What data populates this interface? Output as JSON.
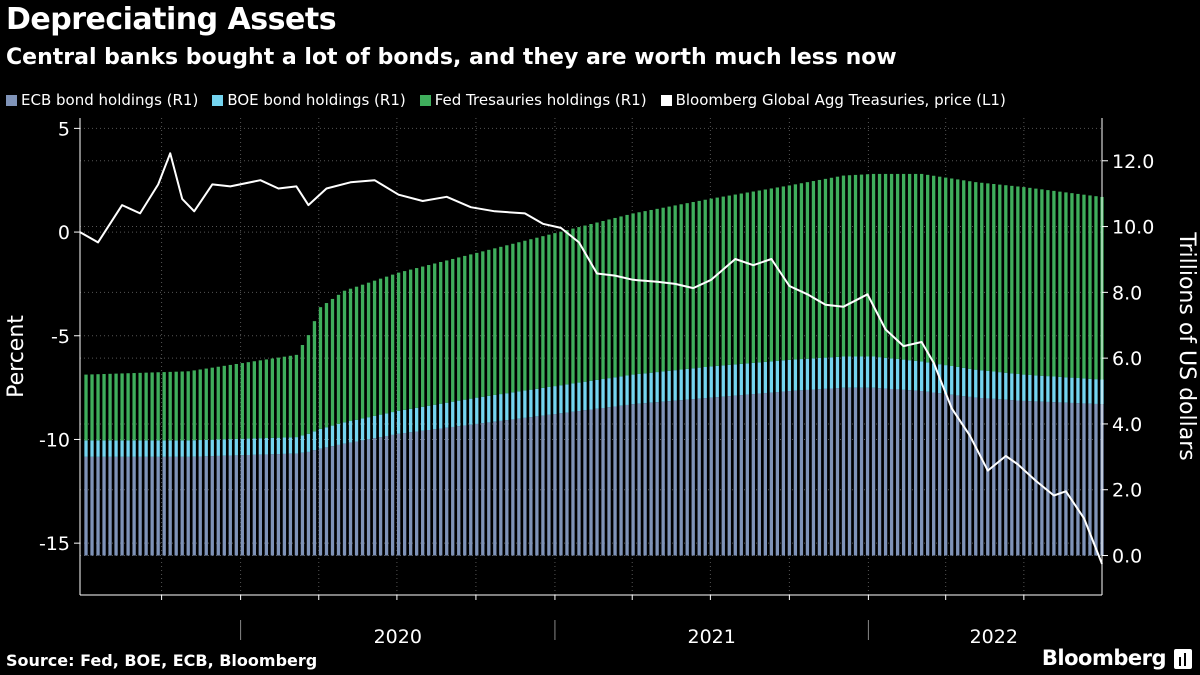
{
  "title": "Depreciating Assets",
  "subtitle": "Central banks bought a lot of bonds, and they are worth much less now",
  "source": "Source: Fed, BOE, ECB, Bloomberg",
  "brand": "Bloomberg",
  "colors": {
    "ecb": "#7f93b8",
    "boe": "#74d4ef",
    "fed": "#3fae5c",
    "line": "#ffffff",
    "grid": "#555555",
    "background": "#000000"
  },
  "legend": [
    {
      "label": "ECB bond holdings (R1)",
      "color": "#7f93b8"
    },
    {
      "label": "BOE bond holdings (R1)",
      "color": "#74d4ef"
    },
    {
      "label": "Fed Tresauries holdings (R1)",
      "color": "#3fae5c"
    },
    {
      "label": "Bloomberg Global Agg Treasuries, price  (L1)",
      "color": "#ffffff"
    }
  ],
  "chart_data": {
    "type": "bar+line",
    "title": "Depreciating Assets",
    "subtitle": "Central banks bought a lot of bonds, and they are worth much less now",
    "x_axis": {
      "type": "date",
      "range": [
        "2019-06-28",
        "2022-09-30"
      ],
      "tick_labels": [
        "2020",
        "2021",
        "2022"
      ]
    },
    "left_axis": {
      "label": "Percent",
      "range": [
        -17.5,
        5.5
      ],
      "ticks": [
        5,
        0,
        -5,
        -10,
        -15
      ]
    },
    "right_axis": {
      "label": "Trillions of US dollars",
      "range": [
        -1.2,
        13.3
      ],
      "ticks": [
        "0.0",
        "2.0",
        "4.0",
        "6.0",
        "8.0",
        "10.0",
        "12.0"
      ]
    },
    "grid": true,
    "bar_series": {
      "stacked": true,
      "axis": "right",
      "names": [
        "ECB bond holdings (R1)",
        "BOE bond holdings (R1)",
        "Fed Tresauries holdings (R1)"
      ],
      "points": [
        {
          "date": "2019-07-05",
          "ecb": 3.0,
          "boe": 0.5,
          "fed": 2.0
        },
        {
          "date": "2019-11-01",
          "ecb": 3.0,
          "boe": 0.5,
          "fed": 2.1
        },
        {
          "date": "2020-01-03",
          "ecb": 3.05,
          "boe": 0.5,
          "fed": 2.3
        },
        {
          "date": "2020-03-06",
          "ecb": 3.1,
          "boe": 0.5,
          "fed": 2.5
        },
        {
          "date": "2020-03-20",
          "ecb": 3.15,
          "boe": 0.55,
          "fed": 3.0
        },
        {
          "date": "2020-04-03",
          "ecb": 3.25,
          "boe": 0.6,
          "fed": 3.7
        },
        {
          "date": "2020-05-01",
          "ecb": 3.4,
          "boe": 0.65,
          "fed": 4.0
        },
        {
          "date": "2020-07-03",
          "ecb": 3.7,
          "boe": 0.7,
          "fed": 4.2
        },
        {
          "date": "2020-10-02",
          "ecb": 4.0,
          "boe": 0.8,
          "fed": 4.4
        },
        {
          "date": "2021-01-01",
          "ecb": 4.3,
          "boe": 0.85,
          "fed": 4.65
        },
        {
          "date": "2021-04-02",
          "ecb": 4.6,
          "boe": 0.9,
          "fed": 4.9
        },
        {
          "date": "2021-07-02",
          "ecb": 4.8,
          "boe": 0.95,
          "fed": 5.1
        },
        {
          "date": "2021-10-01",
          "ecb": 5.0,
          "boe": 0.95,
          "fed": 5.3
        },
        {
          "date": "2021-12-03",
          "ecb": 5.1,
          "boe": 0.95,
          "fed": 5.5
        },
        {
          "date": "2022-01-07",
          "ecb": 5.1,
          "boe": 0.95,
          "fed": 5.55
        },
        {
          "date": "2022-03-04",
          "ecb": 5.0,
          "boe": 0.9,
          "fed": 5.7
        },
        {
          "date": "2022-05-06",
          "ecb": 4.8,
          "boe": 0.85,
          "fed": 5.7
        },
        {
          "date": "2022-07-01",
          "ecb": 4.7,
          "boe": 0.8,
          "fed": 5.7
        },
        {
          "date": "2022-09-30",
          "ecb": 4.6,
          "boe": 0.75,
          "fed": 5.55
        }
      ]
    },
    "line_series": {
      "name": "Bloomberg Global Agg Treasuries, price  (L1)",
      "axis": "left",
      "points": [
        {
          "date": "2019-06-28",
          "value": 0.0
        },
        {
          "date": "2019-07-19",
          "value": -0.5
        },
        {
          "date": "2019-08-16",
          "value": 1.3
        },
        {
          "date": "2019-09-06",
          "value": 0.9
        },
        {
          "date": "2019-09-27",
          "value": 2.3
        },
        {
          "date": "2019-10-11",
          "value": 3.8
        },
        {
          "date": "2019-10-25",
          "value": 1.6
        },
        {
          "date": "2019-11-08",
          "value": 1.0
        },
        {
          "date": "2019-11-29",
          "value": 2.3
        },
        {
          "date": "2019-12-20",
          "value": 2.2
        },
        {
          "date": "2020-01-24",
          "value": 2.5
        },
        {
          "date": "2020-02-14",
          "value": 2.1
        },
        {
          "date": "2020-03-06",
          "value": 2.2
        },
        {
          "date": "2020-03-20",
          "value": 1.3
        },
        {
          "date": "2020-04-10",
          "value": 2.1
        },
        {
          "date": "2020-05-08",
          "value": 2.4
        },
        {
          "date": "2020-06-05",
          "value": 2.5
        },
        {
          "date": "2020-07-03",
          "value": 1.8
        },
        {
          "date": "2020-07-31",
          "value": 1.5
        },
        {
          "date": "2020-08-28",
          "value": 1.7
        },
        {
          "date": "2020-09-25",
          "value": 1.2
        },
        {
          "date": "2020-10-23",
          "value": 1.0
        },
        {
          "date": "2020-11-27",
          "value": 0.9
        },
        {
          "date": "2020-12-18",
          "value": 0.4
        },
        {
          "date": "2021-01-08",
          "value": 0.2
        },
        {
          "date": "2021-01-29",
          "value": -0.5
        },
        {
          "date": "2021-02-19",
          "value": -2.0
        },
        {
          "date": "2021-03-12",
          "value": -2.1
        },
        {
          "date": "2021-04-02",
          "value": -2.3
        },
        {
          "date": "2021-04-30",
          "value": -2.4
        },
        {
          "date": "2021-05-21",
          "value": -2.5
        },
        {
          "date": "2021-06-11",
          "value": -2.7
        },
        {
          "date": "2021-07-02",
          "value": -2.3
        },
        {
          "date": "2021-07-30",
          "value": -1.3
        },
        {
          "date": "2021-08-20",
          "value": -1.6
        },
        {
          "date": "2021-09-10",
          "value": -1.3
        },
        {
          "date": "2021-10-01",
          "value": -2.6
        },
        {
          "date": "2021-10-22",
          "value": -3.0
        },
        {
          "date": "2021-11-12",
          "value": -3.5
        },
        {
          "date": "2021-12-03",
          "value": -3.6
        },
        {
          "date": "2021-12-31",
          "value": -3.0
        },
        {
          "date": "2022-01-21",
          "value": -4.7
        },
        {
          "date": "2022-02-11",
          "value": -5.5
        },
        {
          "date": "2022-03-04",
          "value": -5.3
        },
        {
          "date": "2022-03-18",
          "value": -6.3
        },
        {
          "date": "2022-04-08",
          "value": -8.5
        },
        {
          "date": "2022-04-29",
          "value": -9.8
        },
        {
          "date": "2022-05-20",
          "value": -11.5
        },
        {
          "date": "2022-06-10",
          "value": -10.8
        },
        {
          "date": "2022-06-24",
          "value": -11.2
        },
        {
          "date": "2022-07-15",
          "value": -12.0
        },
        {
          "date": "2022-08-05",
          "value": -12.7
        },
        {
          "date": "2022-08-19",
          "value": -12.5
        },
        {
          "date": "2022-09-09",
          "value": -13.8
        },
        {
          "date": "2022-09-30",
          "value": -16.0
        }
      ]
    }
  }
}
